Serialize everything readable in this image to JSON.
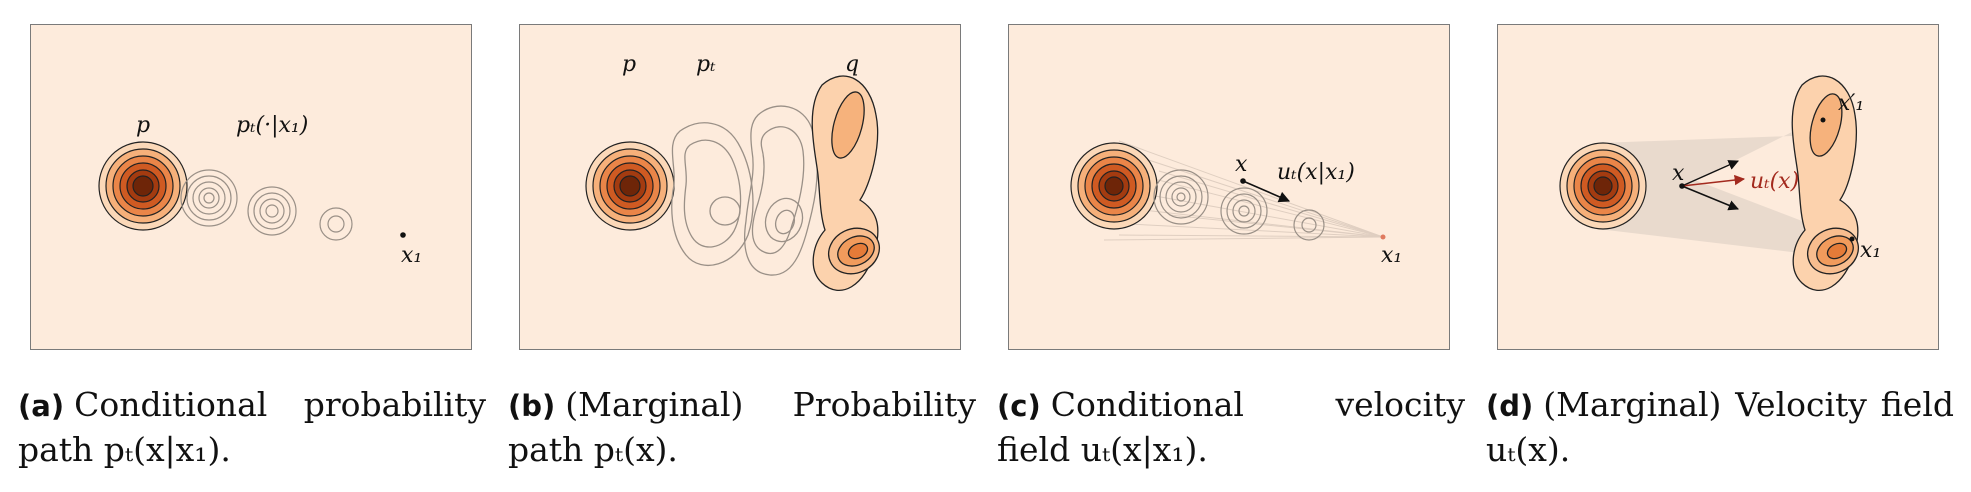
{
  "colors": {
    "background": "#fdebdc",
    "dark": "#4d1906",
    "light": "#f3b37e",
    "ghost": "#9a9087",
    "arrow_red": "#a32a1e"
  },
  "panels": [
    {
      "tag": "(a)",
      "caption": "Conditional probability path pₜ(x|x₁).",
      "labels": {
        "p": "p",
        "pt": "pₜ(·|x₁)",
        "x1": "x₁"
      }
    },
    {
      "tag": "(b)",
      "caption": "(Marginal) Probability path pₜ(x).",
      "labels": {
        "p": "p",
        "pt": "pₜ",
        "q": "q"
      }
    },
    {
      "tag": "(c)",
      "caption": "Conditional velocity field uₜ(x|x₁).",
      "labels": {
        "x": "x",
        "u": "uₜ(x|x₁)",
        "x1": "x₁"
      }
    },
    {
      "tag": "(d)",
      "caption": "(Marginal) Velocity field uₜ(x).",
      "labels": {
        "x": "x",
        "u": "uₜ(x)",
        "x1p": "x′₁",
        "x1": "x₁"
      }
    }
  ]
}
